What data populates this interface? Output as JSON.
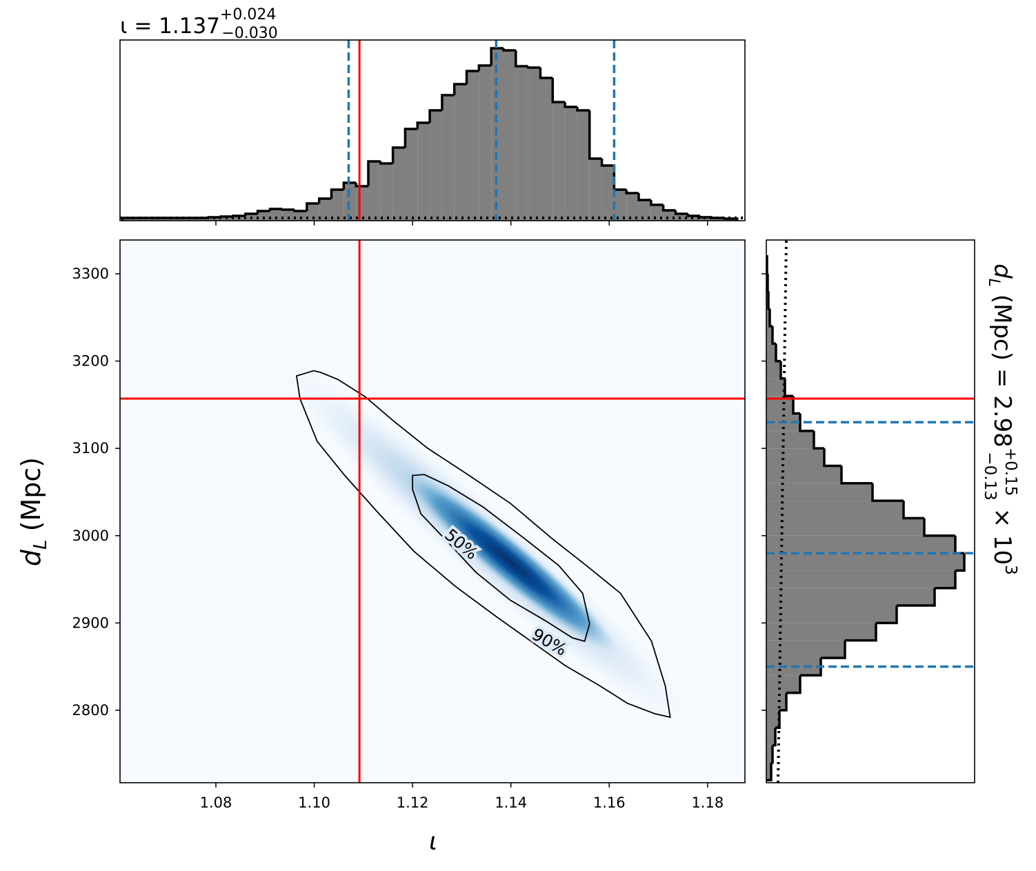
{
  "chart_data": [
    {
      "type": "histogram",
      "orientation": "vertical",
      "title": {
        "main": "ι = 1.137",
        "plus": "+0.024",
        "minus": "−0.030"
      },
      "bins": [
        1.061,
        1.0635,
        1.066,
        1.0685,
        1.071,
        1.0735,
        1.076,
        1.0785,
        1.081,
        1.0835,
        1.086,
        1.0885,
        1.091,
        1.0935,
        1.096,
        1.0985,
        1.101,
        1.1035,
        1.106,
        1.1085,
        1.111,
        1.1135,
        1.116,
        1.1185,
        1.121,
        1.1235,
        1.126,
        1.1285,
        1.131,
        1.1335,
        1.136,
        1.1385,
        1.141,
        1.1435,
        1.146,
        1.1485,
        1.151,
        1.1535,
        1.156,
        1.1585,
        1.161,
        1.1635,
        1.166,
        1.1685,
        1.171,
        1.1735,
        1.176,
        1.1785,
        1.181,
        1.1835,
        1.186
      ],
      "values": [
        4,
        4,
        4,
        4,
        4,
        4,
        4,
        5,
        6,
        7,
        10,
        14,
        17,
        16,
        14,
        25,
        32,
        45,
        55,
        50,
        86,
        83,
        106,
        133,
        142,
        160,
        182,
        198,
        217,
        225,
        250,
        247,
        224,
        222,
        207,
        172,
        165,
        160,
        90,
        80,
        45,
        40,
        30,
        23,
        15,
        10,
        7,
        5,
        4,
        3
      ],
      "color": "#808080",
      "xlim": [
        1.0605,
        1.1876
      ],
      "ylim": [
        0,
        262
      ],
      "quantile_lines": [
        1.107,
        1.137,
        1.161
      ],
      "quantile_color": "#1f77b4",
      "truth": 1.1092,
      "truth_color": "#ff0000",
      "prior_line": [
        4,
        4
      ]
    },
    {
      "type": "density",
      "xlabel": "ι",
      "ylabel": {
        "main": "d",
        "subscript": "L",
        "unit": " (Mpc)"
      },
      "xlim": [
        1.0605,
        1.1876
      ],
      "ylim": [
        2717,
        3338.7
      ],
      "xticks": [
        1.08,
        {
          "value": 1.1,
          "label": "1.10"
        },
        1.12,
        1.14,
        1.16,
        1.18
      ],
      "yticks": [
        2800,
        2900,
        3000,
        3100,
        3200,
        3300
      ],
      "truth": [
        1.1092,
        3157
      ],
      "truth_color": "#ff0000",
      "contours": [
        {
          "label": "50%",
          "x": [
            1.12,
            1.1224,
            1.1273,
            1.1343,
            1.1427,
            1.1497,
            1.1546,
            1.156,
            1.155,
            1.1525,
            1.1469,
            1.1399,
            1.1329,
            1.1276,
            1.1217,
            1.12
          ],
          "y": [
            3069,
            3070,
            3057,
            3033,
            2997,
            2966,
            2934,
            2899,
            2879,
            2883,
            2903,
            2926,
            2958,
            2990,
            3025,
            3053
          ]
        },
        {
          "label": "90%",
          "x": [
            1.0964,
            1.0999,
            1.1013,
            1.1048,
            1.1104,
            1.116,
            1.1231,
            1.1315,
            1.1399,
            1.1483,
            1.1553,
            1.1623,
            1.1686,
            1.1714,
            1.1724,
            1.1693,
            1.1637,
            1.1581,
            1.1511,
            1.1441,
            1.1371,
            1.1287,
            1.1203,
            1.1132,
            1.1062,
            1.1006,
            1.0971
          ],
          "y": [
            3183,
            3189,
            3187,
            3179,
            3159,
            3132,
            3100,
            3069,
            3037,
            2997,
            2966,
            2934,
            2879,
            2828,
            2792,
            2796,
            2808,
            2828,
            2851,
            2879,
            2907,
            2942,
            2982,
            3025,
            3069,
            3108,
            3157
          ]
        }
      ]
    },
    {
      "type": "histogram",
      "orientation": "horizontal",
      "title": {
        "main": "d",
        "subscript": "L",
        "rest": " (Mpc) = 2.98",
        "plus": "+0.15",
        "minus": "−0.13",
        "times": " × 10",
        "exponent": "3"
      },
      "bins": [
        2720,
        2740,
        2760,
        2780,
        2800,
        2820,
        2840,
        2860,
        2880,
        2900,
        2920,
        2940,
        2960,
        2980,
        3000,
        3020,
        3040,
        3060,
        3080,
        3100,
        3120,
        3140,
        3160,
        3180,
        3200,
        3220,
        3240,
        3260,
        3280,
        3300,
        3320
      ],
      "values": [
        7,
        9,
        13,
        19,
        29,
        49,
        79,
        114,
        159,
        189,
        244,
        274,
        287,
        274,
        229,
        199,
        154,
        109,
        84,
        69,
        49,
        39,
        27,
        21,
        14,
        9,
        5,
        3,
        2,
        1
      ],
      "color": "#808080",
      "xlim": [
        0,
        302
      ],
      "ylim": [
        2717,
        3338.7
      ],
      "quantile_lines": [
        2850,
        2980,
        3130
      ],
      "quantile_color": "#1f77b4",
      "truth": 3157,
      "truth_color": "#ff0000",
      "prior_line": [
        17,
        29
      ]
    }
  ]
}
